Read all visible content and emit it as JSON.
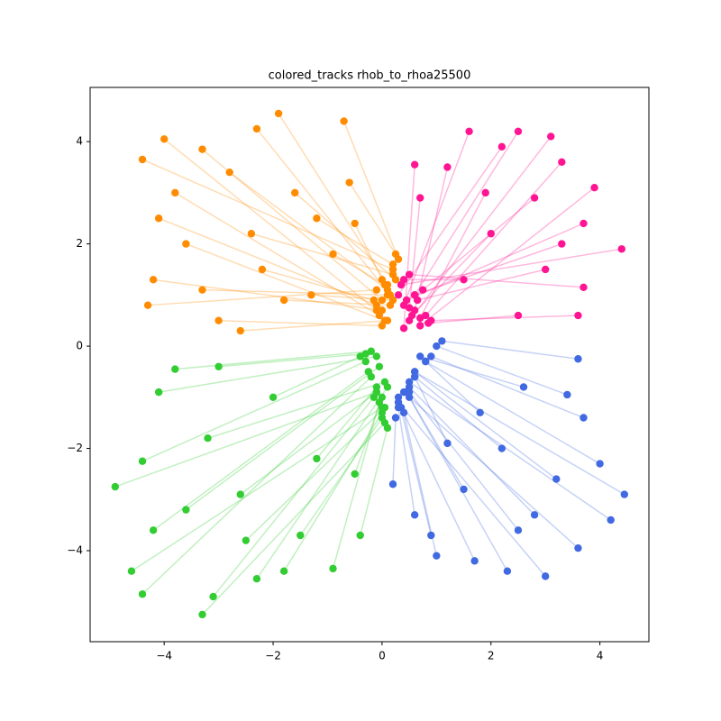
{
  "chart_data": {
    "type": "tracks",
    "title": "colored_tracks rhob_to_rhoa25500",
    "xlim": [
      -5.36,
      4.9
    ],
    "ylim": [
      -5.78,
      5.06
    ],
    "xticks": [
      {
        "value": -4,
        "label": "−4"
      },
      {
        "value": -2,
        "label": "−2"
      },
      0,
      2,
      4
    ],
    "yticks": [
      {
        "value": -4,
        "label": "−4"
      },
      {
        "value": -2,
        "label": "−2"
      },
      0,
      2,
      4
    ],
    "series": [
      {
        "color": "#ff8c00",
        "x_start": [
          0.1,
          -0.1,
          0.2,
          0.0,
          0.15,
          0.3,
          -0.05,
          0.1,
          0.25,
          -0.1,
          0.05,
          0.2,
          0.0,
          0.1,
          -0.15,
          0.2,
          0.05,
          0.0,
          0.15,
          0.25,
          -0.1,
          0.1,
          0.2,
          0.0
        ],
        "y_start": [
          1.2,
          0.7,
          1.5,
          0.9,
          1.0,
          1.7,
          0.6,
          1.1,
          1.3,
          0.8,
          0.5,
          1.4,
          0.7,
          1.0,
          0.9,
          1.6,
          1.2,
          0.4,
          0.8,
          1.8,
          1.1,
          0.5,
          0.9,
          1.3
        ],
        "x": [
          -1.9,
          -4.0,
          -4.4,
          -3.3,
          -2.3,
          -0.7,
          -3.8,
          -2.8,
          -1.6,
          -4.1,
          -3.6,
          -2.4,
          -4.2,
          -3.3,
          -2.2,
          -1.2,
          -0.9,
          -3.0,
          -1.8,
          -0.6,
          -4.3,
          -2.6,
          -1.3,
          -0.5
        ],
        "y": [
          4.55,
          4.05,
          3.65,
          3.85,
          4.25,
          4.4,
          3.0,
          3.4,
          3.0,
          2.5,
          2.0,
          2.2,
          1.3,
          1.1,
          1.5,
          2.5,
          1.8,
          0.5,
          0.9,
          3.2,
          0.8,
          0.3,
          1.0,
          2.4
        ]
      },
      {
        "color": "#ff1493",
        "x_start": [
          0.4,
          0.6,
          0.5,
          0.8,
          0.35,
          0.7,
          0.45,
          0.9,
          0.5,
          0.3,
          0.6,
          0.4,
          0.75,
          0.55,
          0.65,
          0.85,
          0.4,
          0.5,
          0.7,
          0.6
        ],
        "y_start": [
          0.8,
          1.0,
          0.5,
          0.6,
          1.2,
          0.4,
          0.9,
          0.5,
          1.4,
          1.0,
          0.7,
          0.35,
          1.1,
          0.6,
          0.9,
          0.45,
          1.3,
          0.75,
          0.55,
          1.0
        ],
        "x": [
          1.6,
          2.5,
          3.1,
          3.3,
          4.4,
          3.9,
          3.7,
          3.6,
          3.7,
          2.2,
          1.2,
          0.6,
          2.8,
          2.0,
          3.0,
          2.5,
          1.5,
          0.7,
          1.9,
          3.3
        ],
        "y": [
          4.2,
          4.2,
          4.1,
          3.6,
          1.9,
          3.1,
          2.4,
          0.6,
          1.15,
          3.9,
          3.5,
          3.55,
          2.9,
          2.2,
          1.5,
          0.6,
          1.3,
          2.9,
          3.0,
          2.0
        ]
      },
      {
        "color": "#32cd32",
        "x_start": [
          -0.1,
          0.0,
          -0.2,
          0.05,
          -0.15,
          0.1,
          0.0,
          -0.05,
          -0.3,
          -0.1,
          -0.2,
          0.05,
          -0.1,
          0.0,
          0.1,
          -0.25,
          -0.05,
          -0.4,
          -0.1,
          0.0,
          -0.3,
          0.05
        ],
        "y_start": [
          -0.9,
          -1.2,
          -0.6,
          -1.5,
          -1.0,
          -0.8,
          -1.3,
          -1.1,
          -0.3,
          -0.2,
          -0.1,
          -0.7,
          -0.9,
          -1.4,
          -1.6,
          -0.5,
          -0.4,
          -0.2,
          -0.8,
          -1.0,
          -0.15,
          -1.2
        ],
        "x": [
          -4.9,
          -4.6,
          -4.4,
          -3.3,
          -3.1,
          -2.3,
          -1.8,
          -0.9,
          -4.4,
          -4.1,
          -3.8,
          -3.2,
          -2.6,
          -1.5,
          -0.4,
          -4.2,
          -3.6,
          -2.0,
          -1.2,
          -0.5,
          -3.0,
          -2.5
        ],
        "y": [
          -2.75,
          -4.4,
          -4.85,
          -5.25,
          -4.9,
          -4.55,
          -4.4,
          -4.35,
          -2.25,
          -0.9,
          -0.45,
          -1.8,
          -2.9,
          -3.7,
          -3.7,
          -3.6,
          -3.2,
          -1.0,
          -2.2,
          -2.5,
          -0.4,
          -3.8
        ]
      },
      {
        "color": "#4169e1",
        "x_start": [
          0.6,
          0.5,
          0.4,
          0.3,
          0.5,
          0.35,
          0.4,
          0.3,
          0.8,
          0.9,
          1.0,
          1.1,
          0.7,
          0.6,
          0.5,
          0.45,
          0.3,
          0.25,
          0.8,
          0.6,
          0.5,
          0.6
        ],
        "y_start": [
          -0.5,
          -0.7,
          -0.9,
          -1.1,
          -1.0,
          -1.2,
          -1.3,
          -1.0,
          -0.3,
          -0.2,
          0.0,
          0.1,
          -0.2,
          -0.6,
          -0.8,
          -0.9,
          -1.2,
          -1.4,
          -0.3,
          -0.5,
          -0.9,
          -0.6
        ],
        "x": [
          4.45,
          4.2,
          3.6,
          3.0,
          2.3,
          1.7,
          1.0,
          0.9,
          4.0,
          3.7,
          3.4,
          3.6,
          2.6,
          2.2,
          2.8,
          1.5,
          0.6,
          0.2,
          1.8,
          3.2,
          2.5,
          1.2
        ],
        "y": [
          -2.9,
          -3.4,
          -3.95,
          -4.5,
          -4.4,
          -4.2,
          -4.1,
          -3.7,
          -2.3,
          -1.4,
          -0.95,
          -0.25,
          -0.8,
          -2.0,
          -3.3,
          -2.8,
          -3.3,
          -2.7,
          -1.3,
          -2.6,
          -3.6,
          -1.9
        ]
      }
    ]
  }
}
